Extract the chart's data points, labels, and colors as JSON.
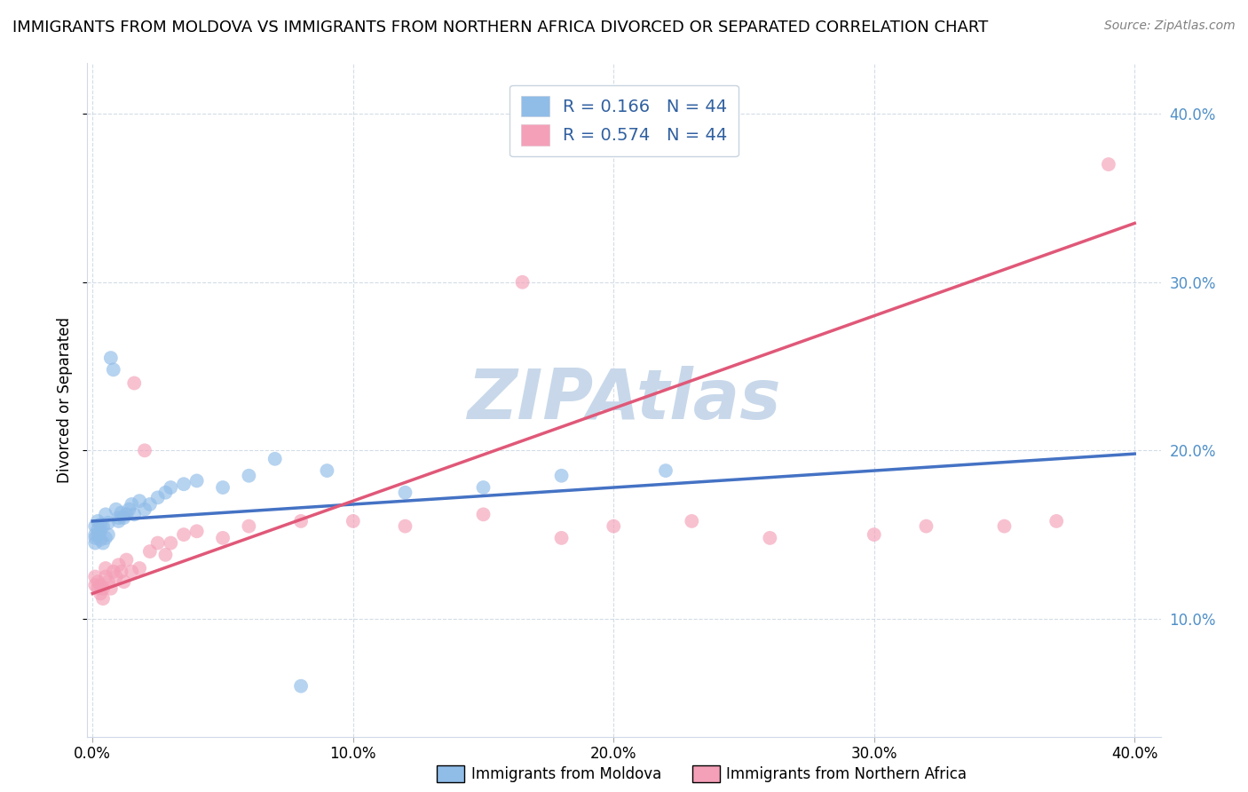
{
  "title": "IMMIGRANTS FROM MOLDOVA VS IMMIGRANTS FROM NORTHERN AFRICA DIVORCED OR SEPARATED CORRELATION CHART",
  "source": "Source: ZipAtlas.com",
  "ylabel": "Divorced or Separated",
  "xlim": [
    -0.002,
    0.41
  ],
  "ylim": [
    0.03,
    0.43
  ],
  "xticks": [
    0.0,
    0.1,
    0.2,
    0.3,
    0.4
  ],
  "yticks_right": [
    0.1,
    0.2,
    0.3,
    0.4
  ],
  "xtick_labels": [
    "0.0%",
    "10.0%",
    "20.0%",
    "30.0%",
    "40.0%"
  ],
  "ytick_labels_right": [
    "10.0%",
    "20.0%",
    "30.0%",
    "40.0%"
  ],
  "moldova_color": "#90bce8",
  "n_africa_color": "#f4a0b8",
  "moldova_line_color": "#4472c4",
  "n_africa_line_color": "#e05878",
  "watermark": "ZIPAtlas",
  "watermark_color": "#c8d8ea",
  "legend_moldova_label": "R = 0.166   N = 44",
  "legend_n_africa_label": "R = 0.574   N = 44",
  "bottom_label_moldova": "Immigrants from Moldova",
  "bottom_label_n_africa": "Immigrants from Northern Africa",
  "moldova_x": [
    0.001,
    0.001,
    0.001,
    0.001,
    0.002,
    0.002,
    0.002,
    0.003,
    0.003,
    0.003,
    0.004,
    0.004,
    0.005,
    0.005,
    0.006,
    0.006,
    0.007,
    0.008,
    0.009,
    0.01,
    0.01,
    0.011,
    0.012,
    0.013,
    0.014,
    0.015,
    0.016,
    0.018,
    0.02,
    0.022,
    0.025,
    0.028,
    0.03,
    0.035,
    0.04,
    0.05,
    0.06,
    0.07,
    0.08,
    0.09,
    0.12,
    0.15,
    0.18,
    0.22
  ],
  "moldova_y": [
    0.145,
    0.148,
    0.15,
    0.155,
    0.15,
    0.153,
    0.158,
    0.147,
    0.152,
    0.156,
    0.145,
    0.155,
    0.148,
    0.162,
    0.15,
    0.157,
    0.255,
    0.248,
    0.165,
    0.16,
    0.158,
    0.163,
    0.16,
    0.162,
    0.165,
    0.168,
    0.162,
    0.17,
    0.165,
    0.168,
    0.172,
    0.175,
    0.178,
    0.18,
    0.182,
    0.178,
    0.185,
    0.195,
    0.06,
    0.188,
    0.175,
    0.178,
    0.185,
    0.188
  ],
  "n_africa_x": [
    0.001,
    0.001,
    0.002,
    0.002,
    0.003,
    0.003,
    0.004,
    0.004,
    0.005,
    0.005,
    0.006,
    0.007,
    0.008,
    0.009,
    0.01,
    0.011,
    0.012,
    0.013,
    0.015,
    0.016,
    0.018,
    0.02,
    0.022,
    0.025,
    0.028,
    0.03,
    0.035,
    0.04,
    0.05,
    0.06,
    0.08,
    0.1,
    0.12,
    0.15,
    0.165,
    0.18,
    0.2,
    0.23,
    0.26,
    0.3,
    0.32,
    0.35,
    0.37,
    0.39
  ],
  "n_africa_y": [
    0.12,
    0.125,
    0.118,
    0.122,
    0.115,
    0.12,
    0.112,
    0.118,
    0.125,
    0.13,
    0.122,
    0.118,
    0.128,
    0.125,
    0.132,
    0.128,
    0.122,
    0.135,
    0.128,
    0.24,
    0.13,
    0.2,
    0.14,
    0.145,
    0.138,
    0.145,
    0.15,
    0.152,
    0.148,
    0.155,
    0.158,
    0.158,
    0.155,
    0.162,
    0.3,
    0.148,
    0.155,
    0.158,
    0.148,
    0.15,
    0.155,
    0.155,
    0.158,
    0.37
  ],
  "moldova_line_x": [
    0.0,
    0.4
  ],
  "moldova_line_y": [
    0.158,
    0.198
  ],
  "n_africa_line_x": [
    0.0,
    0.4
  ],
  "n_africa_line_y": [
    0.115,
    0.335
  ]
}
